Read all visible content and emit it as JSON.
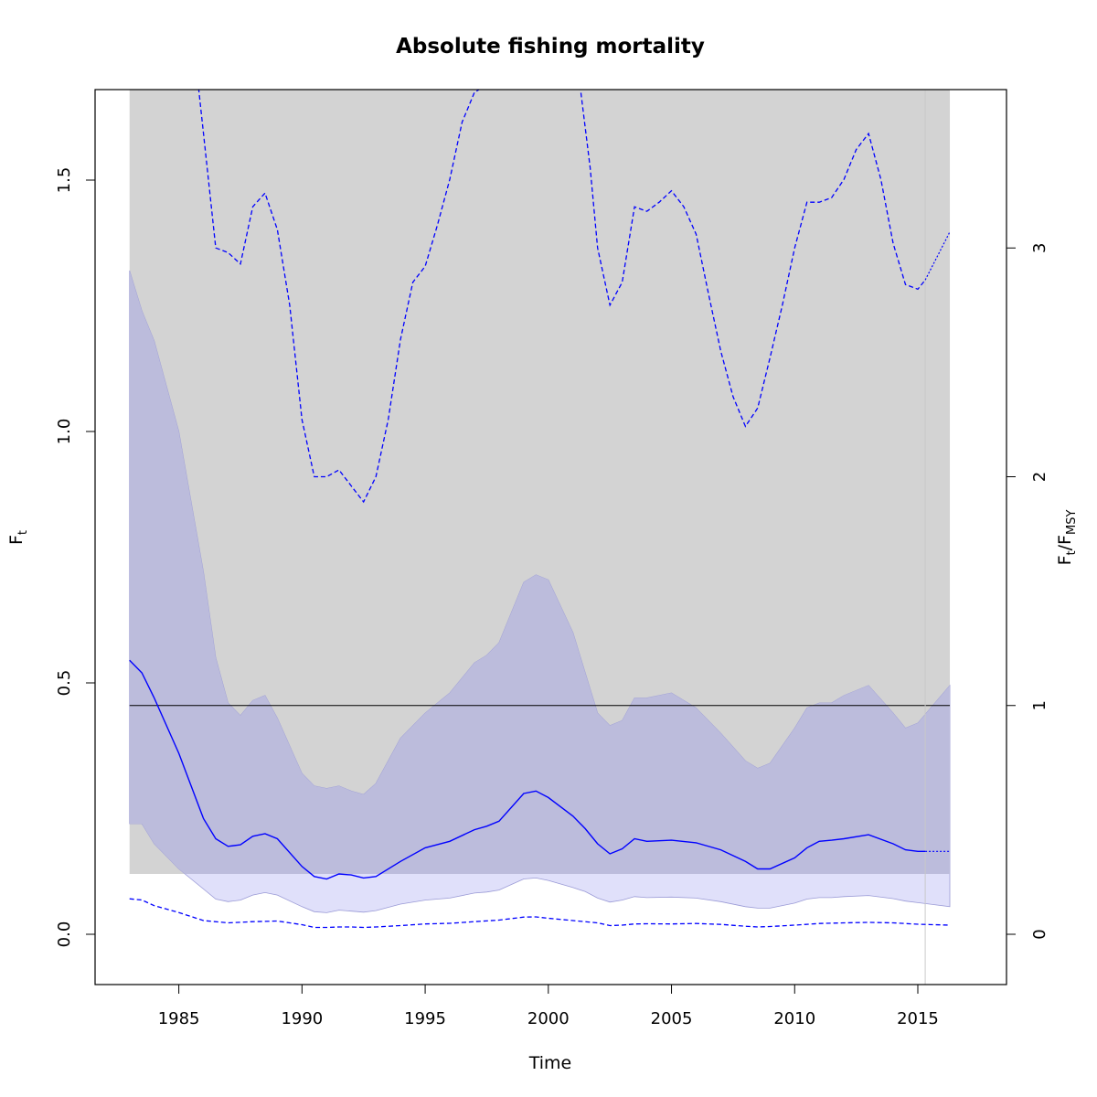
{
  "chart_data": {
    "type": "line",
    "title": "Absolute fishing mortality",
    "xlabel": "Time",
    "ylabel_main": "F",
    "ylabel_sub": "t",
    "y2label_num_main": "F",
    "y2label_num_sub": "t",
    "y2label_den_main": "F",
    "y2label_den_sub": "MSY",
    "xlim": [
      1981.6,
      2018.6
    ],
    "ylim": [
      -0.1,
      1.68
    ],
    "x_ticks": [
      1985,
      1990,
      1995,
      2000,
      2005,
      2010,
      2015
    ],
    "y_ticks": [
      0.0,
      0.5,
      1.0,
      1.5
    ],
    "y_tick_labels": [
      "0.0",
      "0.5",
      "1.0",
      "1.5"
    ],
    "y2_ticks": [
      0,
      1,
      2,
      3
    ],
    "fmsy": 0.455,
    "data_end": 2015.3,
    "gray_region": {
      "x": [
        1983,
        2016.3
      ],
      "y": [
        0.12,
        1.68
      ]
    },
    "colors": {
      "gray_region": "#d3d3d3",
      "ci_fill": "#bcbcdc",
      "ci_fill_light": "#e0e0fa",
      "ci_edge": "#9a9ad6",
      "line": "#0000ff",
      "fmsy_line": "#000000",
      "end_line": "#c8c8c8"
    },
    "series": [
      {
        "role": "estimate",
        "x": [
          1983,
          1983.5,
          1984,
          1985,
          1986,
          1986.5,
          1987,
          1987.5,
          1988,
          1988.5,
          1989,
          1990,
          1990.5,
          1991,
          1991.5,
          1992,
          1992.5,
          1993,
          1994,
          1995,
          1996,
          1997,
          1997.5,
          1998,
          1999,
          1999.5,
          2000,
          2001,
          2001.5,
          2002,
          2002.5,
          2003,
          2003.5,
          2004,
          2005,
          2006,
          2007,
          2008,
          2008.5,
          2009,
          2010,
          2010.5,
          2011,
          2011.5,
          2012,
          2013,
          2014,
          2014.5,
          2015,
          2015.3
        ],
        "y": [
          0.545,
          0.52,
          0.47,
          0.36,
          0.23,
          0.19,
          0.175,
          0.178,
          0.195,
          0.2,
          0.19,
          0.135,
          0.115,
          0.11,
          0.12,
          0.118,
          0.112,
          0.115,
          0.145,
          0.172,
          0.185,
          0.208,
          0.215,
          0.225,
          0.28,
          0.285,
          0.272,
          0.235,
          0.21,
          0.18,
          0.16,
          0.17,
          0.19,
          0.185,
          0.187,
          0.182,
          0.168,
          0.145,
          0.13,
          0.13,
          0.152,
          0.172,
          0.185,
          0.187,
          0.19,
          0.198,
          0.18,
          0.168,
          0.165,
          0.165
        ]
      },
      {
        "role": "estimate_projection",
        "x": [
          2015.3,
          2016.3
        ],
        "y": [
          0.165,
          0.165
        ]
      },
      {
        "role": "ci_upper",
        "x": [
          1983,
          1983.5,
          1984,
          1985,
          1986,
          1986.5,
          1987,
          1987.5,
          1988,
          1988.5,
          1989,
          1990,
          1990.5,
          1991,
          1991.5,
          1992,
          1992.5,
          1993,
          1994,
          1995,
          1996,
          1997,
          1997.5,
          1998,
          1999,
          1999.5,
          2000,
          2001,
          2001.5,
          2002,
          2002.5,
          2003,
          2003.5,
          2004,
          2005,
          2006,
          2007,
          2008,
          2008.5,
          2009,
          2010,
          2010.5,
          2011,
          2011.5,
          2012,
          2013,
          2014,
          2014.5,
          2015,
          2016.3
        ],
        "y": [
          1.32,
          1.24,
          1.18,
          1.0,
          0.72,
          0.55,
          0.46,
          0.435,
          0.465,
          0.475,
          0.43,
          0.32,
          0.295,
          0.29,
          0.295,
          0.285,
          0.278,
          0.3,
          0.39,
          0.44,
          0.48,
          0.54,
          0.555,
          0.58,
          0.7,
          0.715,
          0.705,
          0.6,
          0.52,
          0.44,
          0.415,
          0.425,
          0.47,
          0.47,
          0.48,
          0.45,
          0.4,
          0.345,
          0.33,
          0.34,
          0.41,
          0.45,
          0.46,
          0.46,
          0.475,
          0.495,
          0.44,
          0.41,
          0.42,
          0.495
        ]
      },
      {
        "role": "ci_lower",
        "x": [
          1983,
          1983.5,
          1984,
          1985,
          1986,
          1986.5,
          1987,
          1987.5,
          1988,
          1988.5,
          1989,
          1990,
          1990.5,
          1991,
          1991.5,
          1992,
          1992.5,
          1993,
          1994,
          1995,
          1996,
          1997,
          1997.5,
          1998,
          1999,
          1999.5,
          2000,
          2001,
          2001.5,
          2002,
          2002.5,
          2003,
          2003.5,
          2004,
          2005,
          2006,
          2007,
          2008,
          2008.5,
          2009,
          2010,
          2010.5,
          2011,
          2011.5,
          2012,
          2013,
          2014,
          2014.5,
          2015,
          2016.3
        ],
        "y": [
          0.22,
          0.22,
          0.18,
          0.13,
          0.09,
          0.07,
          0.065,
          0.068,
          0.078,
          0.083,
          0.078,
          0.055,
          0.045,
          0.043,
          0.048,
          0.046,
          0.044,
          0.047,
          0.06,
          0.068,
          0.072,
          0.082,
          0.084,
          0.088,
          0.11,
          0.112,
          0.107,
          0.093,
          0.085,
          0.072,
          0.064,
          0.068,
          0.075,
          0.073,
          0.074,
          0.072,
          0.065,
          0.055,
          0.052,
          0.052,
          0.062,
          0.07,
          0.073,
          0.073,
          0.075,
          0.077,
          0.071,
          0.066,
          0.063,
          0.055
        ]
      },
      {
        "role": "ffmsy_upper",
        "x": [
          1985.8,
          1986.0,
          1986.5,
          1987,
          1987.5,
          1988,
          1988.5,
          1989,
          1989.5,
          1990,
          1990.5,
          1991,
          1991.5,
          1992,
          1992.5,
          1993,
          1993.5,
          1994,
          1994.5,
          1995,
          1995.5,
          1996,
          1996.5,
          1997,
          1997.3,
          2001.3,
          2001.7,
          2002,
          2002.5,
          2003,
          2003.5,
          2004,
          2004.5,
          2005,
          2005.5,
          2006,
          2006.5,
          2007,
          2007.5,
          2008,
          2008.5,
          2009,
          2009.5,
          2010,
          2010.5,
          2011,
          2011.5,
          2012,
          2012.5,
          2013,
          2013.5,
          2014,
          2014.5,
          2015,
          2015.3
        ],
        "y": [
          3.7,
          3.5,
          3.0,
          2.98,
          2.93,
          3.18,
          3.24,
          3.08,
          2.75,
          2.25,
          2.0,
          2.0,
          2.03,
          1.96,
          1.89,
          2.0,
          2.25,
          2.6,
          2.85,
          2.92,
          3.1,
          3.3,
          3.55,
          3.68,
          3.7,
          3.7,
          3.35,
          3.0,
          2.75,
          2.85,
          3.18,
          3.16,
          3.2,
          3.25,
          3.18,
          3.06,
          2.8,
          2.55,
          2.35,
          2.22,
          2.3,
          2.52,
          2.75,
          3.0,
          3.2,
          3.2,
          3.22,
          3.3,
          3.43,
          3.5,
          3.3,
          3.02,
          2.84,
          2.82,
          2.86
        ]
      },
      {
        "role": "ffmsy_upper_projection",
        "x": [
          2015.3,
          2016.3
        ],
        "y": [
          2.86,
          3.07
        ]
      },
      {
        "role": "ffmsy_lower",
        "x": [
          1983,
          1983.5,
          1984,
          1985,
          1986,
          1987,
          1988,
          1989,
          1990,
          1990.5,
          1991,
          1991.5,
          1992,
          1992.5,
          1993,
          1994,
          1995,
          1996,
          1997,
          1998,
          1999,
          1999.5,
          2000,
          2001,
          2002,
          2002.5,
          2003,
          2003.5,
          2004,
          2005,
          2006,
          2007,
          2008,
          2008.5,
          2009,
          2010,
          2011,
          2012,
          2013,
          2014,
          2015,
          2016.3
        ],
        "y": [
          0.155,
          0.15,
          0.125,
          0.095,
          0.06,
          0.05,
          0.055,
          0.058,
          0.042,
          0.03,
          0.03,
          0.032,
          0.032,
          0.03,
          0.032,
          0.038,
          0.045,
          0.048,
          0.055,
          0.062,
          0.075,
          0.076,
          0.07,
          0.06,
          0.05,
          0.038,
          0.04,
          0.045,
          0.046,
          0.045,
          0.047,
          0.043,
          0.035,
          0.032,
          0.034,
          0.04,
          0.047,
          0.05,
          0.052,
          0.05,
          0.044,
          0.04
        ]
      }
    ]
  }
}
